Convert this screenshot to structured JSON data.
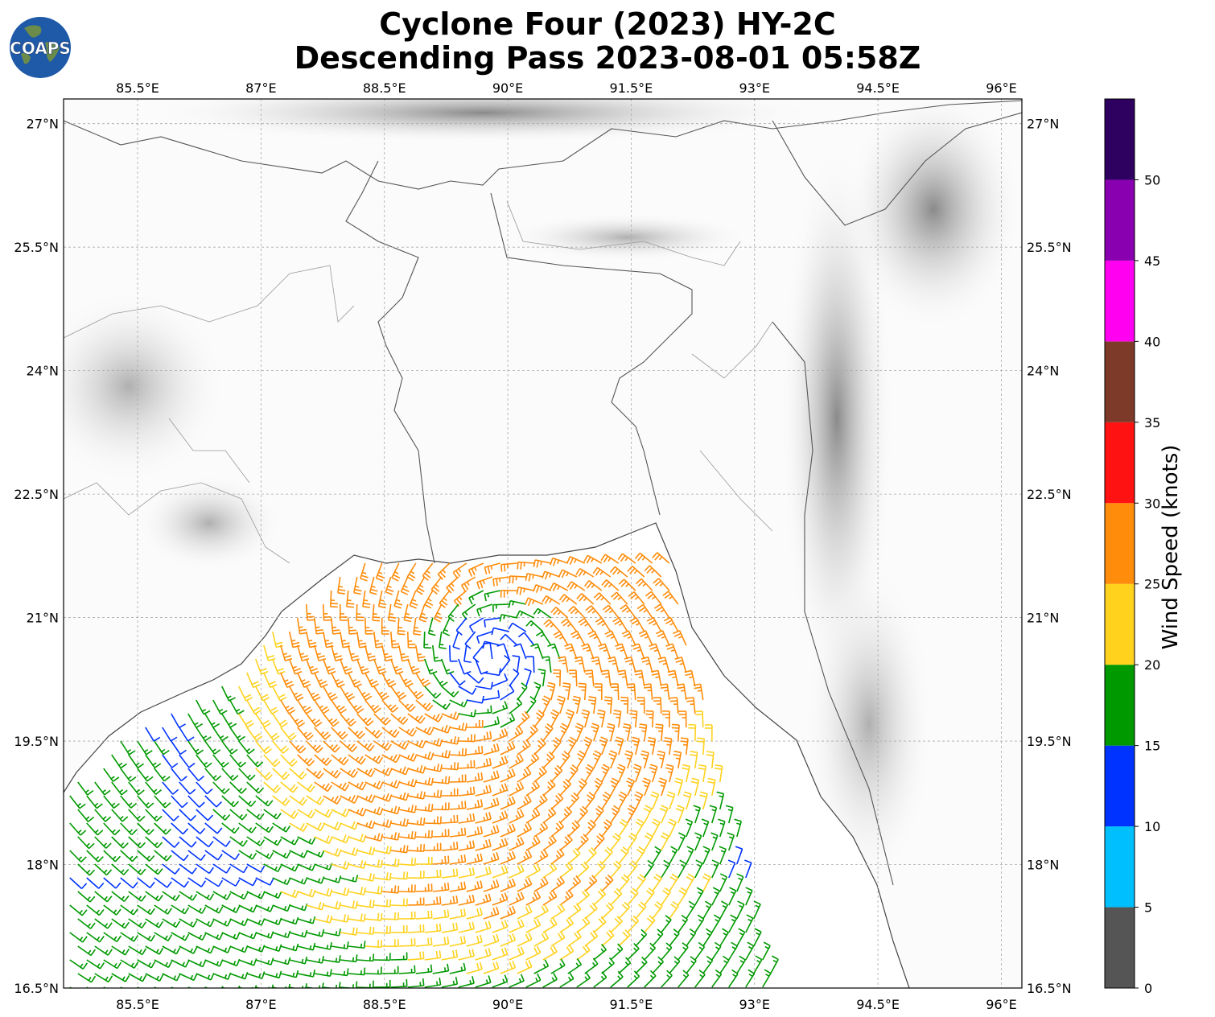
{
  "header": {
    "title_line1": "Cyclone Four (2023) HY-2C",
    "title_line2": "Descending Pass 2023-08-01 05:58Z"
  },
  "logo": {
    "text": "COAPS",
    "icon": "globe-logo-icon"
  },
  "map": {
    "lon_ticks": [
      "85.5°E",
      "87°E",
      "88.5°E",
      "90°E",
      "91.5°E",
      "93°E",
      "94.5°E",
      "96°E"
    ],
    "lat_ticks": [
      "27°N",
      "25.5°N",
      "24°N",
      "22.5°N",
      "21°N",
      "19.5°N",
      "18°N",
      "16.5°N"
    ],
    "lon_range": [
      84.6,
      96.25
    ],
    "lat_range": [
      16.5,
      27.3
    ],
    "background": "grayscale topography",
    "gridlines": true
  },
  "colorbar": {
    "label": "Wind Speed (knots)",
    "ticks": [
      "0",
      "5",
      "10",
      "15",
      "20",
      "25",
      "30",
      "35",
      "40",
      "45",
      "50"
    ],
    "bins": [
      {
        "from": 0,
        "to": 5,
        "color": "#555555"
      },
      {
        "from": 5,
        "to": 10,
        "color": "#00bfff"
      },
      {
        "from": 10,
        "to": 15,
        "color": "#0033ff"
      },
      {
        "from": 15,
        "to": 20,
        "color": "#009900"
      },
      {
        "from": 20,
        "to": 25,
        "color": "#ffd21e"
      },
      {
        "from": 25,
        "to": 30,
        "color": "#ff8c0a"
      },
      {
        "from": 30,
        "to": 35,
        "color": "#ff1212"
      },
      {
        "from": 35,
        "to": 40,
        "color": "#7e3a28"
      },
      {
        "from": 40,
        "to": 45,
        "color": "#ff00f0"
      },
      {
        "from": 45,
        "to": 50,
        "color": "#8800b0"
      },
      {
        "from": 50,
        "to": 55,
        "color": "#2e005f"
      }
    ]
  },
  "wind_field": {
    "center_lon": 89.8,
    "center_lat": 20.5,
    "units": "knots"
  }
}
